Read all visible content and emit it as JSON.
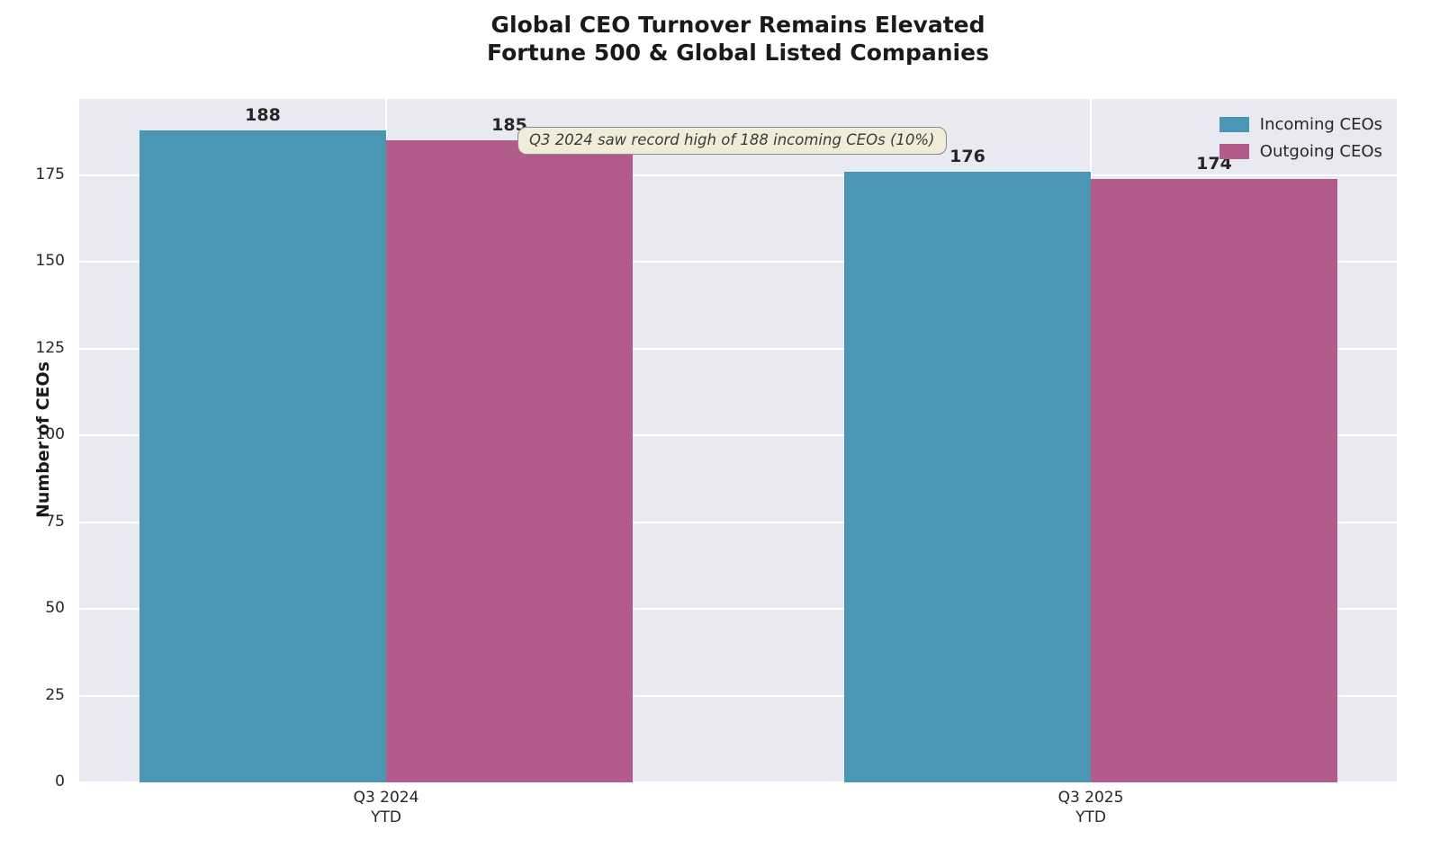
{
  "title": {
    "line1": "Global CEO Turnover Remains Elevated",
    "line2": "Fortune 500 & Global Listed Companies"
  },
  "chart_data": {
    "type": "bar",
    "categories": [
      "Q3 2024\nYTD",
      "Q3 2025\nYTD"
    ],
    "series": [
      {
        "name": "Incoming CEOs",
        "color": "#4c96b5",
        "values": [
          188,
          176
        ]
      },
      {
        "name": "Outgoing CEOs",
        "color": "#b35c8c",
        "values": [
          185,
          174
        ]
      }
    ],
    "ylabel": "Number of CEOs",
    "ylim": [
      0,
      197
    ],
    "yticks": [
      0,
      25,
      50,
      75,
      100,
      125,
      150,
      175
    ],
    "grid": true,
    "legend_position": "upper right",
    "annotation": "Q3 2024 saw record high of 188 incoming CEOs (10%)",
    "plot_background": "#e9e9f1",
    "gridline_color": "#ffffff"
  }
}
